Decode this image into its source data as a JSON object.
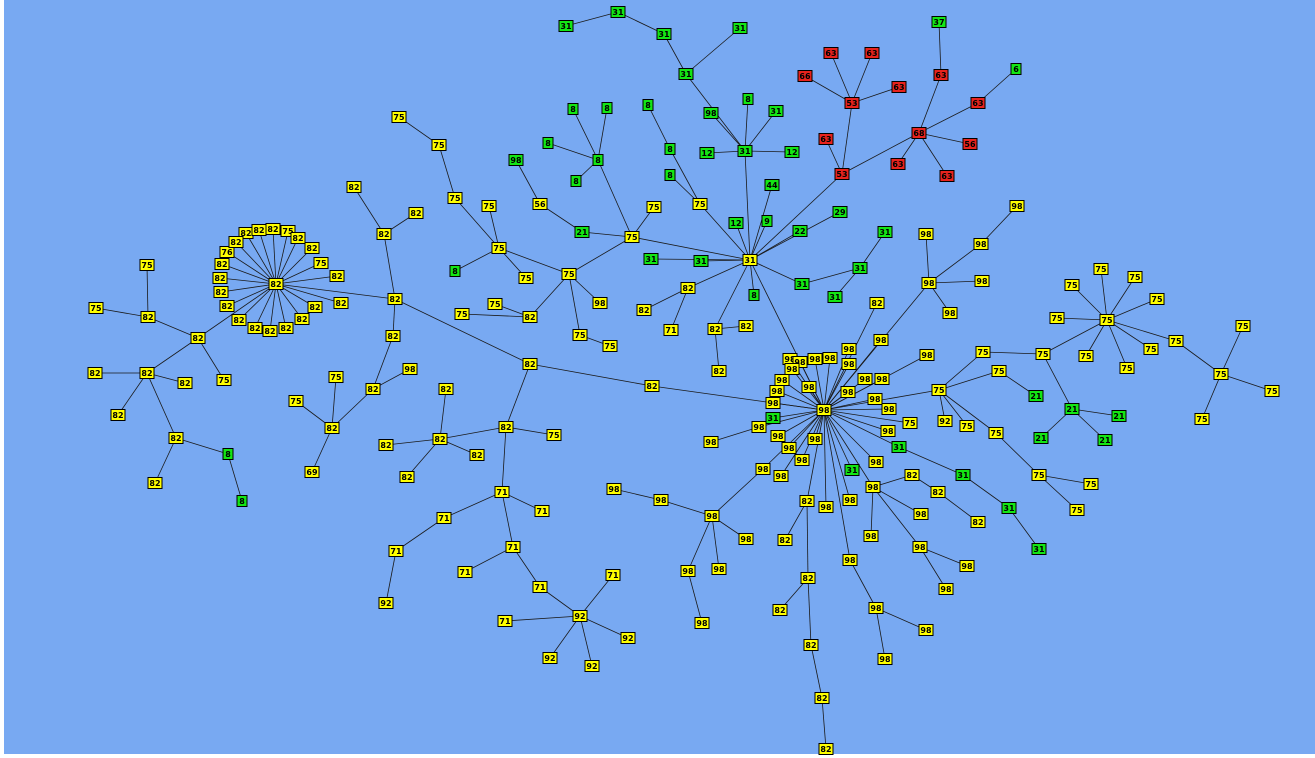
{
  "nodes": [
    "82",
    "82",
    "82",
    "82",
    "75",
    "82",
    "82",
    "75",
    "82",
    "82",
    "82",
    "82",
    "82",
    "82",
    "82",
    "82",
    "82",
    "82",
    "82",
    "76",
    "82",
    "82",
    "82",
    "82",
    "82",
    "75",
    "75",
    "82",
    "82",
    "82",
    "82",
    "82",
    "75",
    "82",
    "8",
    "8",
    "82",
    "82",
    "82",
    "82",
    "82",
    "98",
    "82",
    "75",
    "75",
    "69",
    "82",
    "82",
    "98",
    "82",
    "82",
    "82",
    "82",
    "82",
    "82",
    "75",
    "71",
    "71",
    "71",
    "92",
    "71",
    "71",
    "71",
    "71",
    "92",
    "71",
    "71",
    "92",
    "92",
    "92",
    "31",
    "75",
    "21",
    "56",
    "98",
    "8",
    "8",
    "8",
    "8",
    "8",
    "75",
    "75",
    "75",
    "75",
    "75",
    "75",
    "8",
    "75",
    "82",
    "75",
    "75",
    "98",
    "75",
    "75",
    "75",
    "75",
    "8",
    "8",
    "8",
    "31",
    "31",
    "31",
    "31",
    "31",
    "31",
    "98",
    "8",
    "31",
    "12",
    "12",
    "44",
    "9",
    "12",
    "22",
    "29",
    "31",
    "31",
    "8",
    "31",
    "31",
    "31",
    "31",
    "82",
    "82",
    "71",
    "82",
    "82",
    "82",
    "53",
    "53",
    "63",
    "63",
    "66",
    "63",
    "63",
    "68",
    "63",
    "37",
    "63",
    "6",
    "56",
    "63",
    "63",
    "98",
    "98",
    "98",
    "98",
    "98",
    "98",
    "98",
    "98",
    "98",
    "98",
    "98",
    "31",
    "98",
    "98",
    "98",
    "98",
    "98",
    "98",
    "98",
    "98",
    "98",
    "98",
    "98",
    "98",
    "98",
    "82",
    "82",
    "82",
    "82",
    "82",
    "82",
    "82",
    "98",
    "98",
    "98",
    "98",
    "98",
    "98",
    "98",
    "98",
    "98",
    "98",
    "98",
    "98",
    "75",
    "98",
    "31",
    "98",
    "31",
    "98",
    "98",
    "98",
    "98",
    "98",
    "98",
    "98",
    "82",
    "82",
    "82",
    "31",
    "31",
    "31",
    "82",
    "98",
    "98",
    "98",
    "98",
    "98",
    "98",
    "98",
    "98",
    "75",
    "92",
    "75",
    "75",
    "75",
    "75",
    "75",
    "21",
    "21",
    "21",
    "21",
    "21",
    "75",
    "75",
    "75",
    "75",
    "75",
    "75",
    "75",
    "75",
    "75",
    "75",
    "75",
    "75",
    "75",
    "75",
    "75",
    "75",
    "75"
  ]
}
